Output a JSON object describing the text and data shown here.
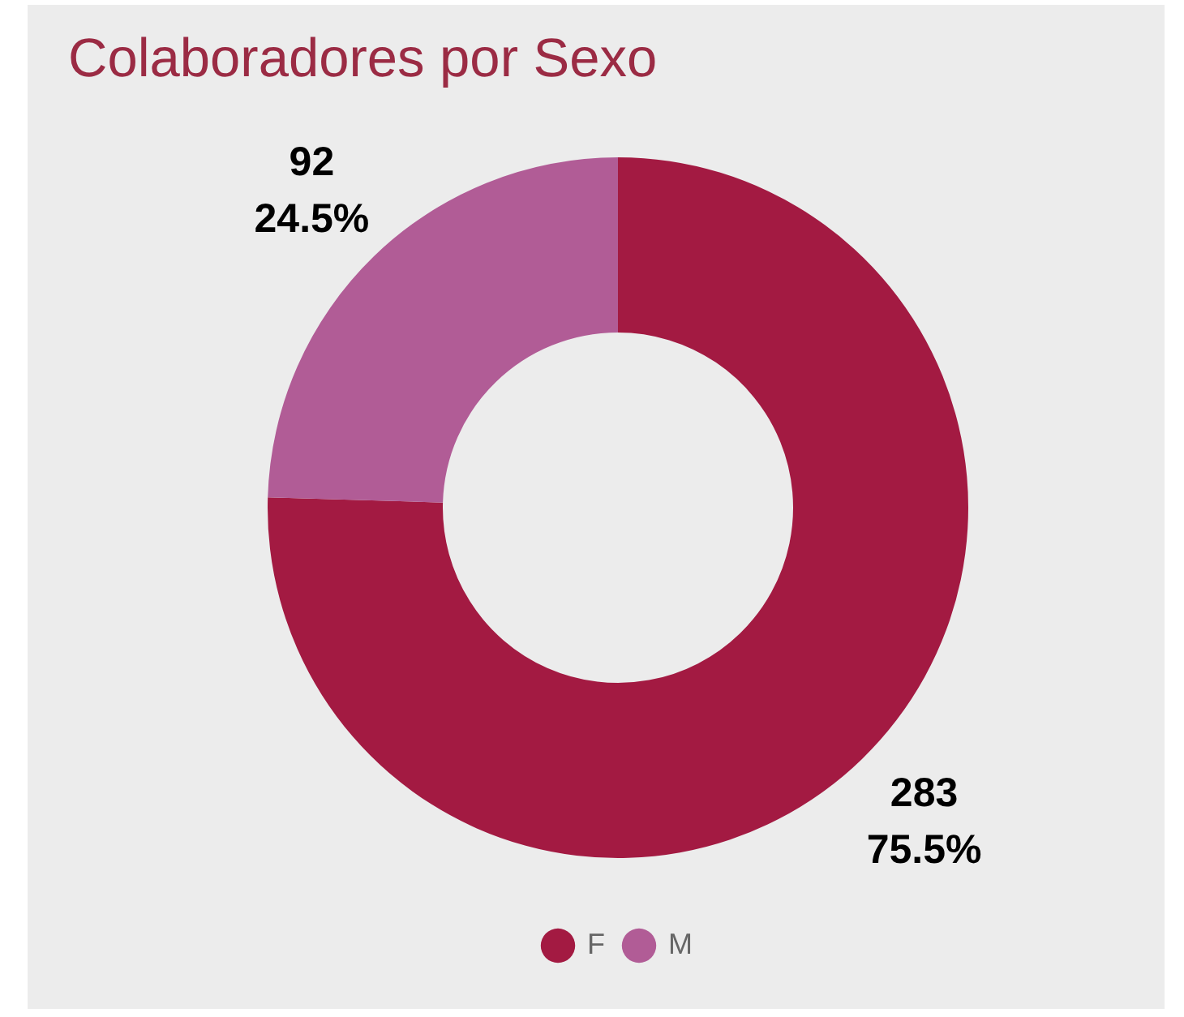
{
  "chart_data": {
    "type": "donut",
    "title": "Colaboradores por Sexo",
    "categories": [
      "F",
      "M"
    ],
    "values": [
      283,
      92
    ],
    "colors": [
      "#a31a42",
      "#b15c96"
    ],
    "value_labels": [
      "283\n75.5%",
      "92\n24.5%"
    ],
    "legend": "bottom"
  }
}
